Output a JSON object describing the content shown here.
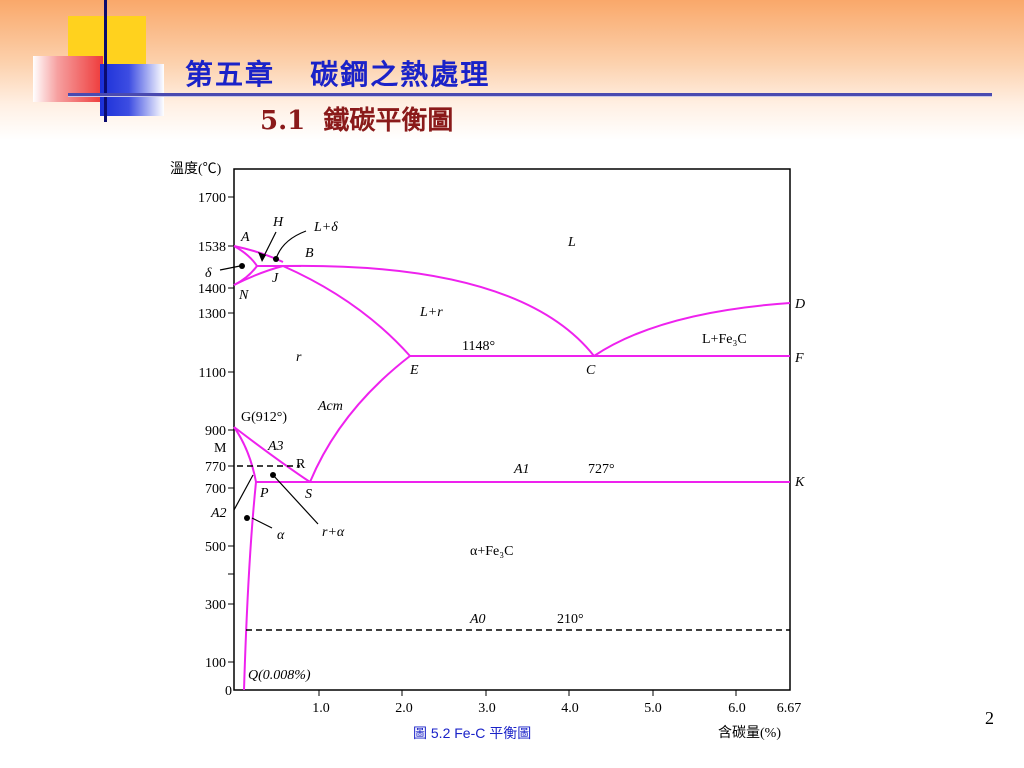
{
  "slide": {
    "title": "第五章   碳鋼之熱處理",
    "subtitle": "5.1  鐵碳平衡圖",
    "page_number": "2"
  },
  "colors": {
    "phase_line": "#ee22ee",
    "title": "#1a22c8",
    "subtitle": "#8a1a1a"
  },
  "figure": {
    "caption": "圖 5.2   Fe-C 平衡圖",
    "y_axis_label": "溫度(℃)",
    "x_axis_label": "含碳量(%)",
    "y_ticks": [
      "1700",
      "1538",
      "1400",
      "1300",
      "1100",
      "900",
      "770",
      "700",
      "500",
      "300",
      "100",
      "0"
    ],
    "x_ticks": [
      "1.0",
      "2.0",
      "3.0",
      "4.0",
      "5.0",
      "6.0",
      "6.67"
    ],
    "points": {
      "A": "A",
      "B": "B",
      "C": "C",
      "D": "D",
      "E": "E",
      "F": "F",
      "H": "H",
      "J": "J",
      "N": "N",
      "P": "P",
      "S": "S",
      "K": "K",
      "M": "M",
      "R": "R",
      "G": "G(912°)",
      "Q": "Q(0.008%)"
    },
    "regions": {
      "liquid": "L",
      "l_delta": "L+δ",
      "delta": "δ",
      "l_gamma": "L+r",
      "l_fe3c": "L+Fe₃C",
      "gamma": "r",
      "gamma_alpha": "r+α",
      "alpha": "α",
      "alpha_fe3c": "α+Fe₃C"
    },
    "lines": {
      "acm": "Acm",
      "a3": "A3",
      "a2": "A2",
      "a1": "A1",
      "a0": "A0"
    },
    "temperatures": {
      "eutectic": "1148°",
      "eutectoid": "727°",
      "a0": "210°"
    }
  }
}
